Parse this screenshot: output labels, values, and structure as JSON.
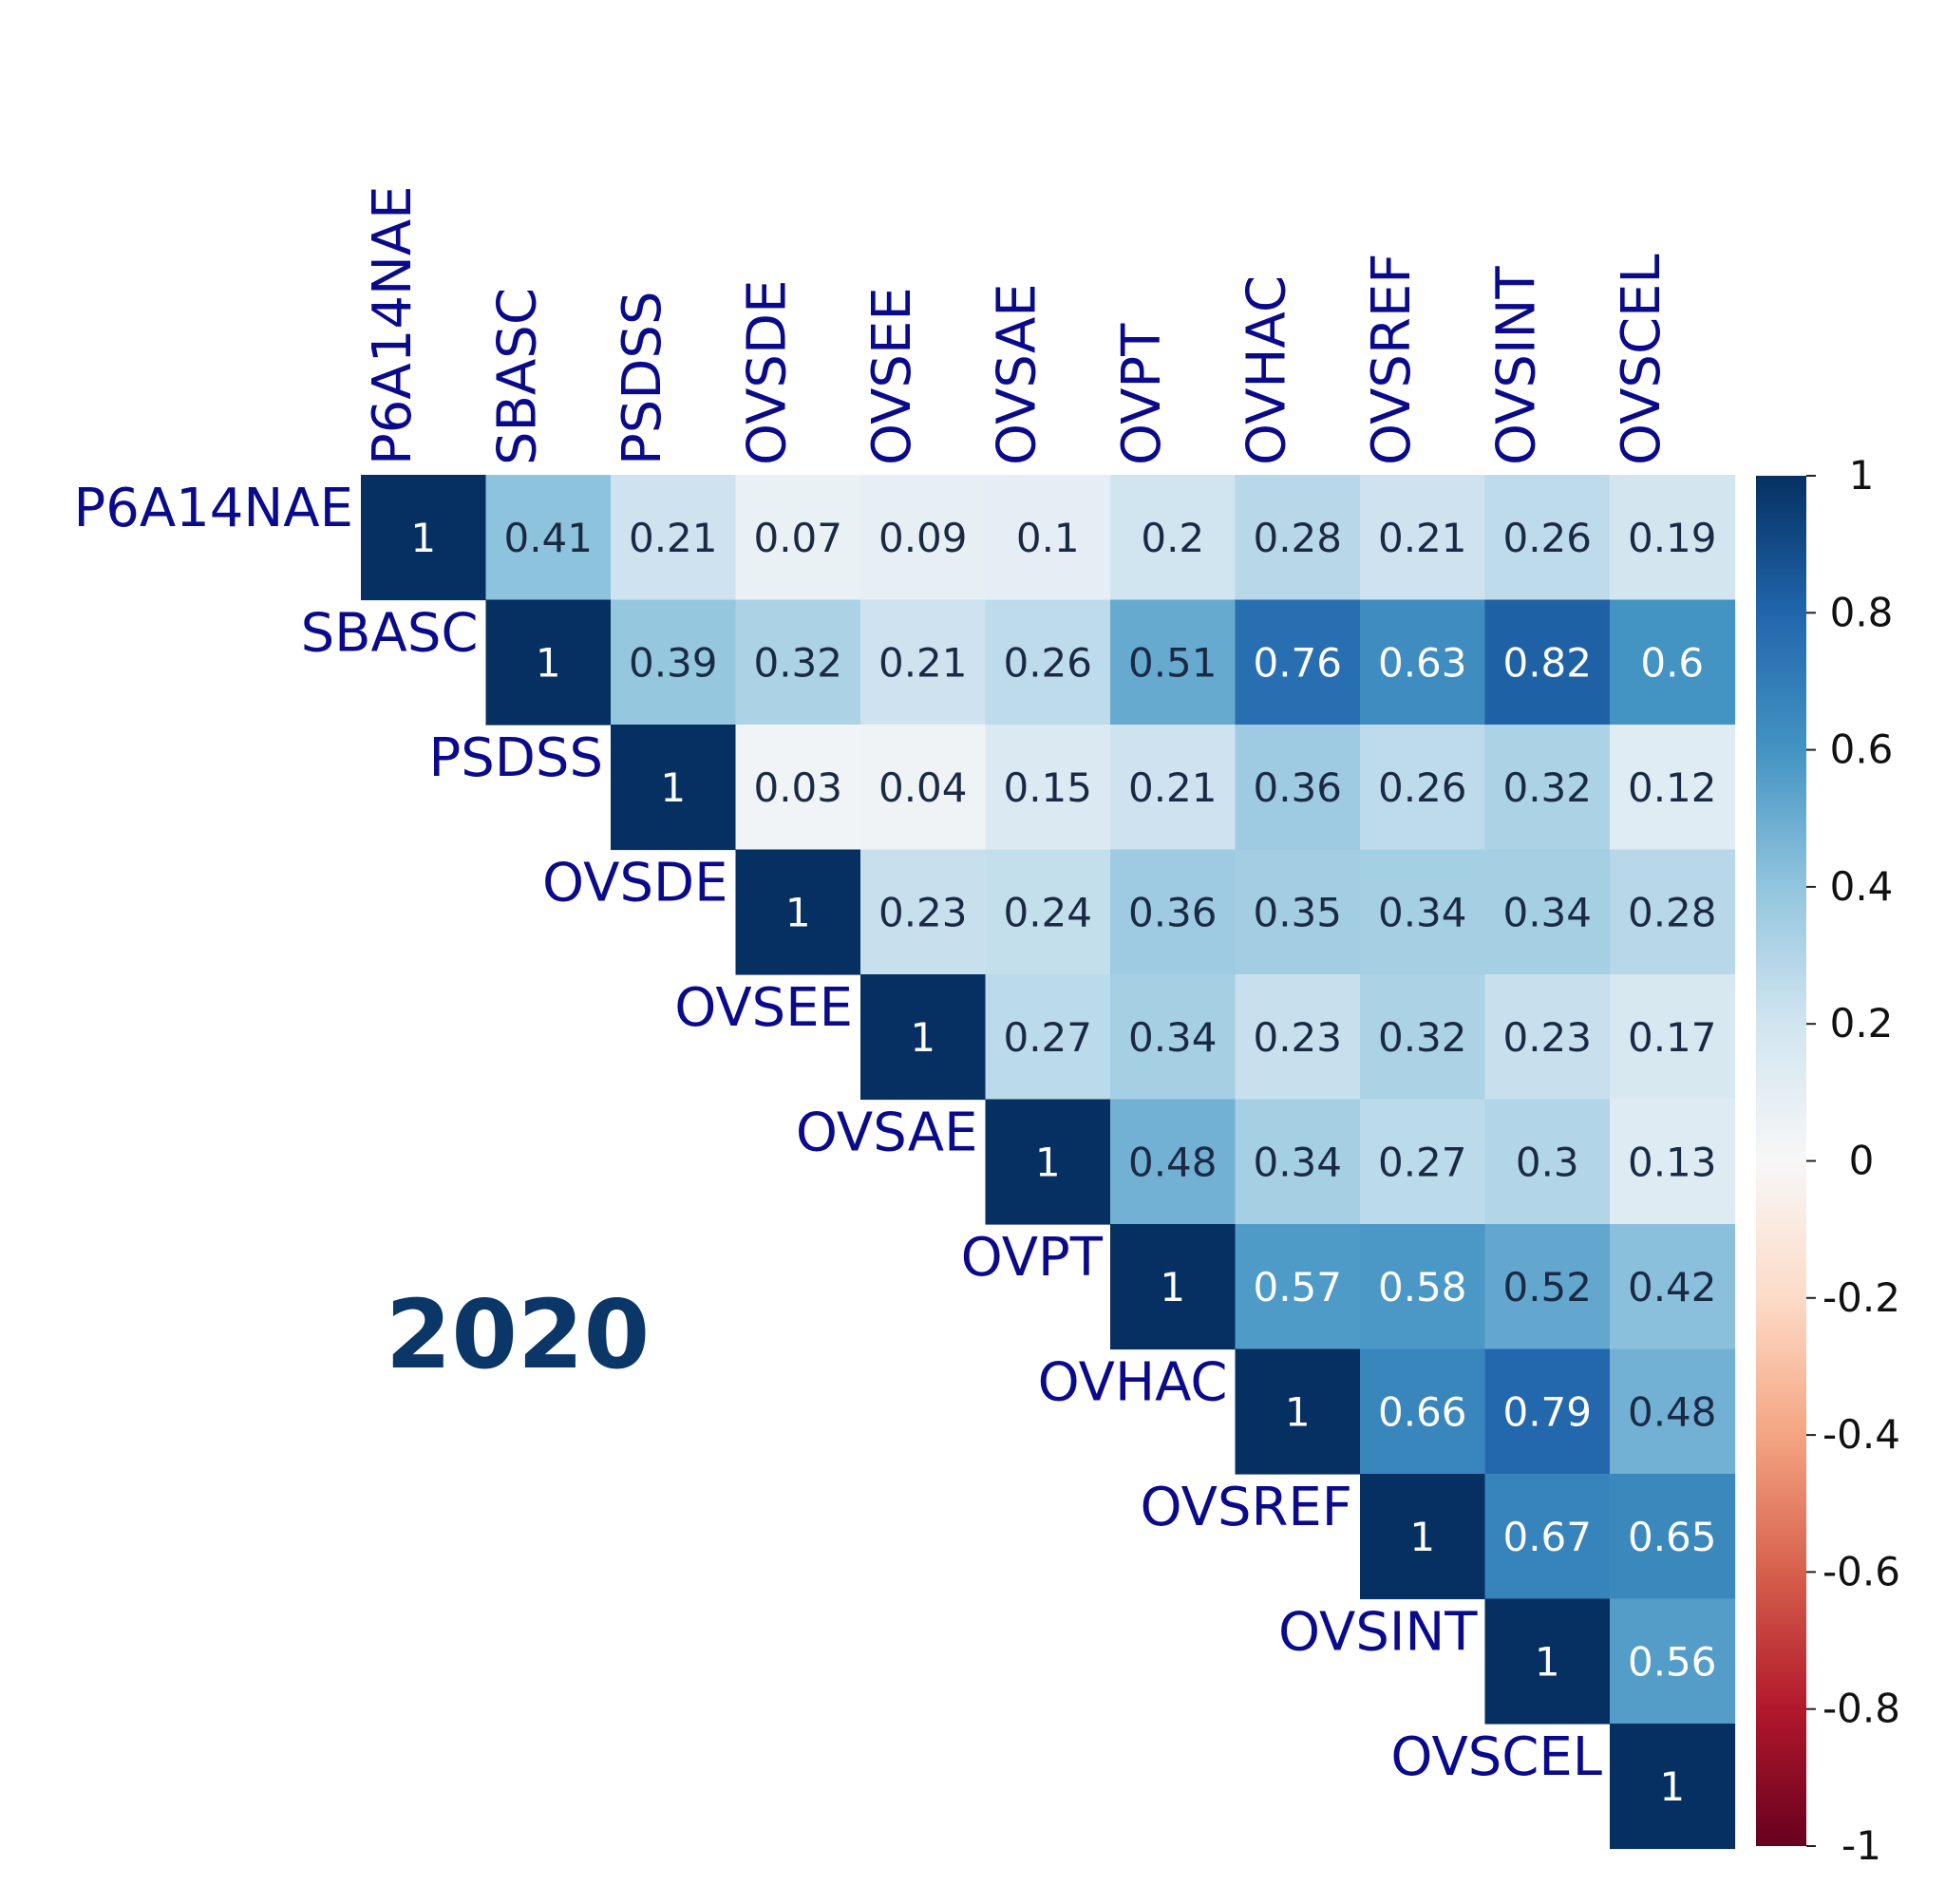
{
  "chart_data": {
    "type": "heatmap",
    "subtype": "correlation-upper-triangle",
    "annotation": "2020",
    "variables": [
      "P6A14NAE",
      "SBASC",
      "PSDSS",
      "OVSDE",
      "OVSEE",
      "OVSAE",
      "OVPT",
      "OVHAC",
      "OVSREF",
      "OVSINT",
      "OVSCEL"
    ],
    "matrix": [
      [
        1,
        0.41,
        0.21,
        0.07,
        0.09,
        0.1,
        0.2,
        0.28,
        0.21,
        0.26,
        0.19
      ],
      [
        null,
        1,
        0.39,
        0.32,
        0.21,
        0.26,
        0.51,
        0.76,
        0.63,
        0.82,
        0.6
      ],
      [
        null,
        null,
        1,
        0.03,
        0.04,
        0.15,
        0.21,
        0.36,
        0.26,
        0.32,
        0.12
      ],
      [
        null,
        null,
        null,
        1,
        0.23,
        0.24,
        0.36,
        0.35,
        0.34,
        0.34,
        0.28
      ],
      [
        null,
        null,
        null,
        null,
        1,
        0.27,
        0.34,
        0.23,
        0.32,
        0.23,
        0.17
      ],
      [
        null,
        null,
        null,
        null,
        null,
        1,
        0.48,
        0.34,
        0.27,
        0.3,
        0.13
      ],
      [
        null,
        null,
        null,
        null,
        null,
        null,
        1,
        0.57,
        0.58,
        0.52,
        0.42
      ],
      [
        null,
        null,
        null,
        null,
        null,
        null,
        null,
        1,
        0.66,
        0.79,
        0.48
      ],
      [
        null,
        null,
        null,
        null,
        null,
        null,
        null,
        null,
        1,
        0.67,
        0.65
      ],
      [
        null,
        null,
        null,
        null,
        null,
        null,
        null,
        null,
        null,
        1,
        0.56
      ],
      [
        null,
        null,
        null,
        null,
        null,
        null,
        null,
        null,
        null,
        null,
        1
      ]
    ],
    "colorbar": {
      "range": [
        -1,
        1
      ],
      "ticks": [
        1,
        0.8,
        0.6,
        0.4,
        0.2,
        0,
        -0.2,
        -0.4,
        -0.6,
        -0.8,
        -1
      ],
      "tick_labels": [
        "1",
        "0.8",
        "0.6",
        "0.4",
        "0.2",
        "0",
        "-0.2",
        "-0.4",
        "-0.6",
        "-0.8",
        "-1"
      ],
      "colormap": "RdBu",
      "stops": [
        {
          "value": -1.0,
          "color": "#67001f"
        },
        {
          "value": -0.8,
          "color": "#b2182b"
        },
        {
          "value": -0.6,
          "color": "#d6604d"
        },
        {
          "value": -0.4,
          "color": "#f4a582"
        },
        {
          "value": -0.2,
          "color": "#fddbc7"
        },
        {
          "value": 0.0,
          "color": "#f7f7f7"
        },
        {
          "value": 0.2,
          "color": "#d1e5f0"
        },
        {
          "value": 0.4,
          "color": "#92c5de"
        },
        {
          "value": 0.6,
          "color": "#4393c3"
        },
        {
          "value": 0.8,
          "color": "#2166ac"
        },
        {
          "value": 1.0,
          "color": "#053061"
        }
      ]
    },
    "label_color": "#0a0a8c",
    "annotation_color": "#0b3768"
  }
}
